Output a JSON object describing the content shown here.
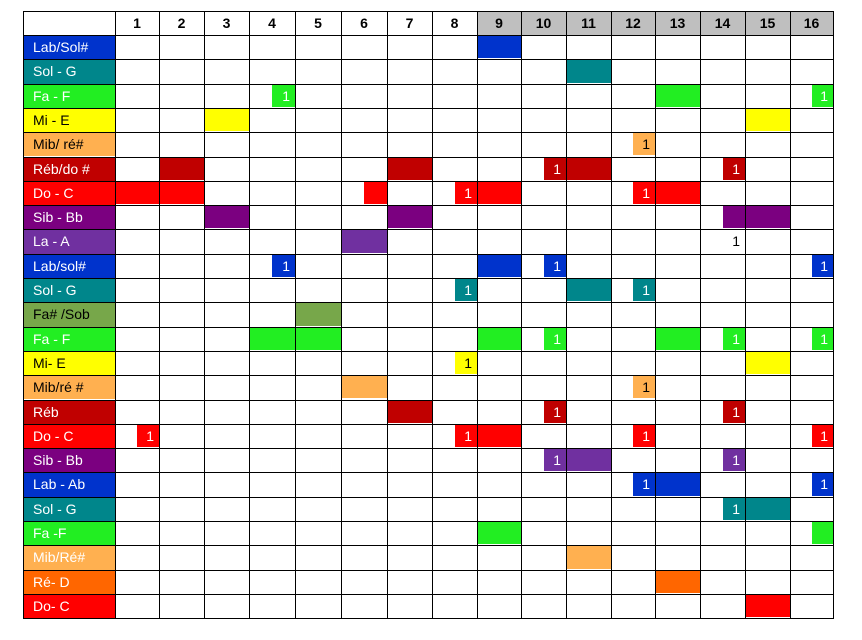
{
  "columns": [
    "1",
    "2",
    "3",
    "4",
    "5",
    "6",
    "7",
    "8",
    "9",
    "10",
    "11",
    "12",
    "13",
    "14",
    "15",
    "16"
  ],
  "highlight_columns": [
    9,
    10,
    11,
    12,
    13,
    14,
    15,
    16
  ],
  "header_gray_color": "#bfbfbf",
  "colors": {
    "blue": "#0033cc",
    "teal": "#00868b",
    "green": "#22ee22",
    "yellow": "#ffff00",
    "orange": "#ffb050",
    "darkred": "#c00000",
    "red": "#ff0000",
    "purple": "#7b0080",
    "violet": "#7030a0",
    "olive": "#77a74a",
    "darkorange": "#ff6600"
  },
  "rows": [
    {
      "label": "Lab/Sol#",
      "color": "blue",
      "text": "#ffffff",
      "blocks": [
        {
          "start": 9,
          "end": 9
        }
      ]
    },
    {
      "label": "Sol - G",
      "color": "teal",
      "text": "#ffffff",
      "blocks": [
        {
          "start": 11,
          "end": 11
        }
      ]
    },
    {
      "label": "Fa - F",
      "color": "green",
      "text": "#ffffff",
      "blocks": [
        {
          "start": 4,
          "end": 4,
          "mark": "1",
          "narrow": true
        },
        {
          "start": 13,
          "end": 13
        },
        {
          "start": 16,
          "end": 16,
          "mark": "1",
          "narrow": true
        }
      ]
    },
    {
      "label": "Mi - E",
      "color": "yellow",
      "text": "#000000",
      "blocks": [
        {
          "start": 3,
          "end": 3
        },
        {
          "start": 15,
          "end": 15
        }
      ]
    },
    {
      "label": "Mib/ ré#",
      "color": "orange",
      "text": "#000000",
      "blocks": [
        {
          "start": 12,
          "end": 12,
          "mark": "1",
          "narrow": true
        }
      ]
    },
    {
      "label": "Réb/do #",
      "color": "darkred",
      "text": "#ffffff",
      "blocks": [
        {
          "start": 2,
          "end": 2
        },
        {
          "start": 7,
          "end": 7
        },
        {
          "start": 10,
          "end": 10,
          "mark": "1",
          "narrow": true
        },
        {
          "start": 11,
          "end": 11
        },
        {
          "start": 14,
          "end": 14,
          "mark": "1",
          "narrow": true
        }
      ]
    },
    {
      "label": "Do - C",
      "color": "red",
      "text": "#ffffff",
      "blocks": [
        {
          "start": 1,
          "end": 2
        },
        {
          "start": 6,
          "end": 6,
          "narrow": true
        },
        {
          "start": 8,
          "end": 8,
          "mark": "1",
          "narrow": true
        },
        {
          "start": 9,
          "end": 9
        },
        {
          "start": 12,
          "end": 12,
          "mark": "1",
          "narrow": true
        },
        {
          "start": 13,
          "end": 13
        }
      ]
    },
    {
      "label": "Sib - Bb",
      "color": "purple",
      "text": "#ffffff",
      "blocks": [
        {
          "start": 3,
          "end": 3
        },
        {
          "start": 7,
          "end": 7
        },
        {
          "start": 14,
          "end": 14,
          "narrow": true
        },
        {
          "start": 15,
          "end": 15
        }
      ]
    },
    {
      "label": "La - A",
      "color": "violet",
      "text": "#ffffff",
      "blocks": [
        {
          "start": 6,
          "end": 6
        },
        {
          "start": 14,
          "end": 14,
          "mark": "1",
          "narrow": true,
          "textonly": true
        }
      ]
    },
    {
      "label": "Lab/sol#",
      "color": "blue",
      "text": "#ffffff",
      "blocks": [
        {
          "start": 4,
          "end": 4,
          "mark": "1",
          "narrow": true
        },
        {
          "start": 9,
          "end": 9
        },
        {
          "start": 10,
          "end": 10,
          "mark": "1",
          "narrow": true
        },
        {
          "start": 16,
          "end": 16,
          "mark": "1",
          "narrow": true
        }
      ]
    },
    {
      "label": "Sol - G",
      "color": "teal",
      "text": "#ffffff",
      "blocks": [
        {
          "start": 8,
          "end": 8,
          "mark": "1",
          "narrow": true
        },
        {
          "start": 11,
          "end": 11
        },
        {
          "start": 12,
          "end": 12,
          "mark": "1",
          "narrow": true
        }
      ]
    },
    {
      "label": "Fa# /Sob",
      "color": "olive",
      "text": "#000000",
      "blocks": [
        {
          "start": 5,
          "end": 5
        }
      ]
    },
    {
      "label": "Fa - F",
      "color": "green",
      "text": "#ffffff",
      "blocks": [
        {
          "start": 4,
          "end": 5
        },
        {
          "start": 9,
          "end": 9
        },
        {
          "start": 10,
          "end": 10,
          "mark": "1",
          "narrow": true
        },
        {
          "start": 13,
          "end": 13
        },
        {
          "start": 14,
          "end": 14,
          "mark": "1",
          "narrow": true
        },
        {
          "start": 16,
          "end": 16,
          "mark": "1",
          "narrow": true
        }
      ]
    },
    {
      "label": "Mi- E",
      "color": "yellow",
      "text": "#000000",
      "blocks": [
        {
          "start": 8,
          "end": 8,
          "mark": "1",
          "narrow": true
        },
        {
          "start": 15,
          "end": 15
        }
      ]
    },
    {
      "label": "Mib/ré #",
      "color": "orange",
      "text": "#000000",
      "blocks": [
        {
          "start": 6,
          "end": 6
        },
        {
          "start": 12,
          "end": 12,
          "mark": "1",
          "narrow": true
        }
      ]
    },
    {
      "label": "Réb",
      "color": "darkred",
      "text": "#ffffff",
      "blocks": [
        {
          "start": 7,
          "end": 7
        },
        {
          "start": 10,
          "end": 10,
          "mark": "1",
          "narrow": true
        },
        {
          "start": 14,
          "end": 14,
          "mark": "1",
          "narrow": true
        }
      ]
    },
    {
      "label": "Do - C",
      "color": "red",
      "text": "#ffffff",
      "blocks": [
        {
          "start": 1,
          "end": 1,
          "mark": "1",
          "narrow": true
        },
        {
          "start": 8,
          "end": 8,
          "mark": "1",
          "narrow": true
        },
        {
          "start": 9,
          "end": 9
        },
        {
          "start": 12,
          "end": 12,
          "mark": "1",
          "narrow": true
        },
        {
          "start": 16,
          "end": 16,
          "mark": "1",
          "narrow": true
        }
      ]
    },
    {
      "label": "Sib - Bb",
      "color": "purple",
      "text": "#ffffff",
      "blocks": [
        {
          "start": 10,
          "end": 10,
          "mark": "1",
          "narrow": true,
          "alt": "violet"
        },
        {
          "start": 11,
          "end": 11,
          "alt": "violet"
        },
        {
          "start": 14,
          "end": 14,
          "mark": "1",
          "narrow": true,
          "alt": "violet"
        }
      ]
    },
    {
      "label": "Lab - Ab",
      "color": "blue",
      "text": "#ffffff",
      "blocks": [
        {
          "start": 12,
          "end": 12,
          "mark": "1",
          "narrow": true
        },
        {
          "start": 13,
          "end": 13
        },
        {
          "start": 16,
          "end": 16,
          "mark": "1",
          "narrow": true
        }
      ]
    },
    {
      "label": "Sol - G",
      "color": "teal",
      "text": "#ffffff",
      "blocks": [
        {
          "start": 14,
          "end": 14,
          "mark": "1",
          "narrow": true
        },
        {
          "start": 15,
          "end": 15
        }
      ]
    },
    {
      "label": "Fa -F",
      "color": "green",
      "text": "#ffffff",
      "blocks": [
        {
          "start": 9,
          "end": 9
        },
        {
          "start": 16,
          "end": 16,
          "narrow": true
        }
      ]
    },
    {
      "label": "Mib/Ré#",
      "color": "orange",
      "text": "#ffffff",
      "blocks": [
        {
          "start": 11,
          "end": 11
        }
      ]
    },
    {
      "label": "Ré- D",
      "color": "darkorange",
      "text": "#ffffff",
      "blocks": [
        {
          "start": 13,
          "end": 13
        }
      ]
    },
    {
      "label": "Do- C",
      "color": "red",
      "text": "#ffffff",
      "blocks": [
        {
          "start": 15,
          "end": 15
        }
      ]
    }
  ]
}
